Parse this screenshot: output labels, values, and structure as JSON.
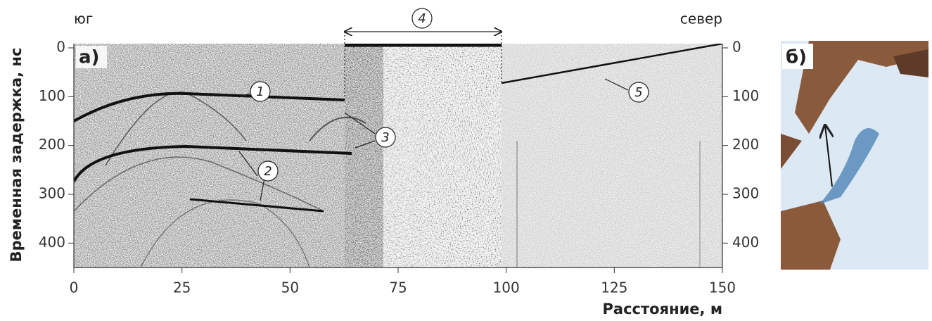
{
  "chart_data": {
    "type": "radargram",
    "side_labels": [
      "юг",
      "север"
    ],
    "panel_labels": [
      "а)",
      "б)"
    ],
    "annotations": [
      "1",
      "2",
      "3",
      "4",
      "5"
    ],
    "xlabel": "Расстояние, м",
    "ylabel": "Временная задержка, нс",
    "xlim": [
      0,
      150
    ],
    "xticks": [
      0,
      25,
      50,
      75,
      100,
      125,
      150
    ],
    "ylim": [
      0,
      450
    ],
    "yticks": [
      0,
      100,
      200,
      300,
      400
    ],
    "y_inverted": true,
    "y2lim": [
      0,
      450
    ],
    "y2ticks": [
      0,
      100,
      200,
      300,
      400
    ]
  }
}
